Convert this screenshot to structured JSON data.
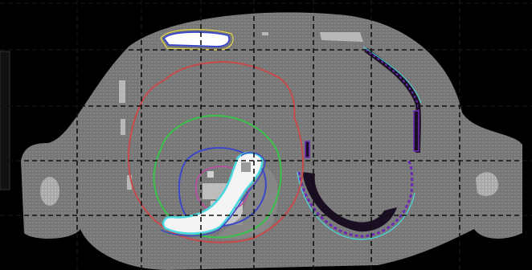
{
  "viewer": {
    "background_color": "#000000",
    "body_color": "#7a7a7a",
    "dark_region_color": "#1a0f22",
    "bone_color": "#d8d8d8",
    "grid_line_color": "#111111"
  },
  "contours": [
    {
      "name": "red",
      "color": "#c84a4a"
    },
    {
      "name": "green",
      "color": "#39c24a"
    },
    {
      "name": "blue",
      "color": "#3a48c6"
    },
    {
      "name": "magenta",
      "color": "#c04aa4"
    },
    {
      "name": "cyan",
      "color": "#49d8e0"
    },
    {
      "name": "purple",
      "color": "#6a2ab5"
    },
    {
      "name": "yellow",
      "color": "#e6d84a"
    }
  ]
}
